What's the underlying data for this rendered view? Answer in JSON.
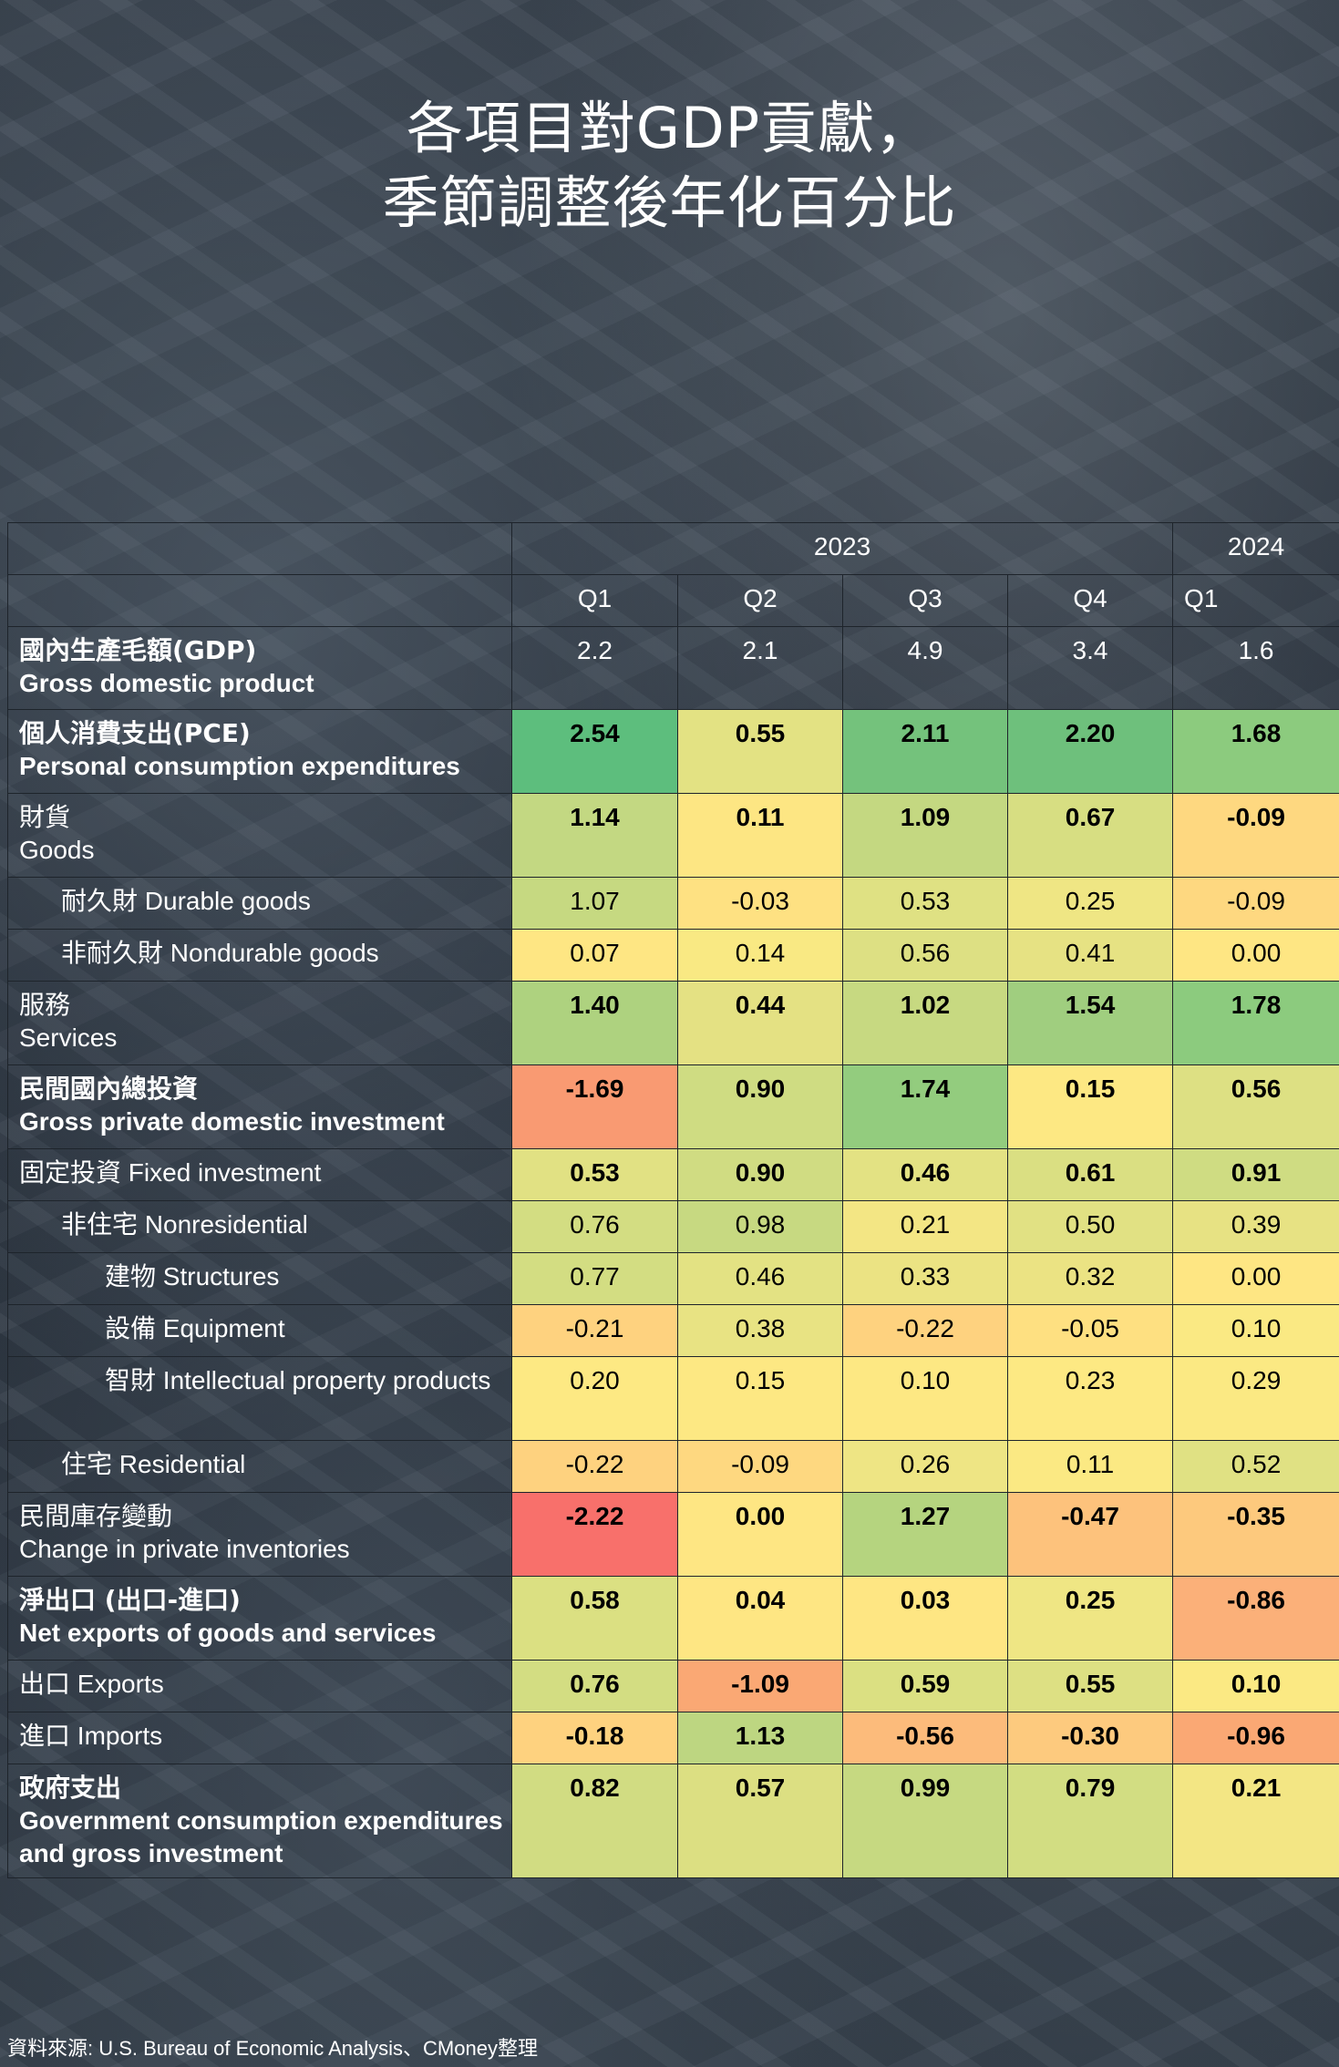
{
  "title": {
    "line1": "各項目對GDP貢獻，",
    "line2": "季節調整後年化百分比"
  },
  "header": {
    "year_2023": "2023",
    "year_2024": "2024",
    "quarters": [
      "Q1",
      "Q2",
      "Q3",
      "Q4",
      "Q1"
    ]
  },
  "chart_data": {
    "type": "table",
    "columns": [
      "2023 Q1",
      "2023 Q2",
      "2023 Q3",
      "2023 Q4",
      "2024 Q1"
    ],
    "rows": [
      {
        "zh": "國內生產毛額(GDP)",
        "en": "Gross domestic product",
        "values": [
          "2.2",
          "2.1",
          "4.9",
          "3.4",
          "1.6"
        ],
        "colors": [
          "",
          "",
          "",
          "",
          ""
        ]
      },
      {
        "zh": "個人消費支出(PCE)",
        "en": "Personal consumption expenditures",
        "values": [
          "2.54",
          "0.55",
          "2.11",
          "2.20",
          "1.68"
        ],
        "colors": [
          "#5dbe7d",
          "#e3e283",
          "#74c27c",
          "#6ec07c",
          "#8ccb7e"
        ]
      },
      {
        "zh": "財貨",
        "en": "Goods",
        "values": [
          "1.14",
          "0.11",
          "1.09",
          "0.67",
          "-0.09"
        ],
        "colors": [
          "#c3d882",
          "#fde683",
          "#c4d881",
          "#d7de82",
          "#fed880"
        ]
      },
      {
        "zh": "耐久財",
        "en": "Durable goods",
        "values": [
          "1.07",
          "-0.03",
          "0.53",
          "0.25",
          "-0.09"
        ],
        "colors": [
          "#c6d981",
          "#fee182",
          "#dfe183",
          "#efe684",
          "#fed880"
        ]
      },
      {
        "zh": "非耐久財",
        "en": "Nondurable goods",
        "values": [
          "0.07",
          "0.14",
          "0.56",
          "0.41",
          "0.00"
        ],
        "colors": [
          "#fee683",
          "#f9e983",
          "#dde083",
          "#e6e283",
          "#fee683"
        ]
      },
      {
        "zh": "服務",
        "en": "Services",
        "values": [
          "1.40",
          "0.44",
          "1.02",
          "1.54",
          "1.78"
        ],
        "colors": [
          "#aed27f",
          "#e4e183",
          "#c7d981",
          "#a0ce7f",
          "#8ccb7e"
        ]
      },
      {
        "zh": "民間國內總投資",
        "en": "Gross private domestic investment",
        "values": [
          "-1.69",
          "0.90",
          "1.74",
          "0.15",
          "0.56"
        ],
        "colors": [
          "#f99a72",
          "#cfdc82",
          "#93cc7e",
          "#fde883",
          "#dde083"
        ]
      },
      {
        "zh": "固定投資",
        "en": "Fixed investment",
        "values": [
          "0.53",
          "0.90",
          "0.46",
          "0.61",
          "0.91"
        ],
        "colors": [
          "#e1e183",
          "#d0dc82",
          "#e3e283",
          "#dadf82",
          "#cfdc82"
        ]
      },
      {
        "zh": "非住宅",
        "en": "Nonresidential",
        "values": [
          "0.76",
          "0.98",
          "0.21",
          "0.50",
          "0.39"
        ],
        "colors": [
          "#d3dd82",
          "#c7d981",
          "#f3e684",
          "#e1e183",
          "#e7e283"
        ]
      },
      {
        "zh": "建物",
        "en": "Structures",
        "values": [
          "0.77",
          "0.46",
          "0.33",
          "0.32",
          "0.00"
        ],
        "colors": [
          "#d3dd82",
          "#e3e283",
          "#ebe383",
          "#ebe383",
          "#fee683"
        ]
      },
      {
        "zh": "設備",
        "en": "Equipment",
        "values": [
          "-0.21",
          "0.38",
          "-0.22",
          "-0.05",
          "0.10"
        ],
        "colors": [
          "#fed27f",
          "#e8e383",
          "#fed27f",
          "#fee081",
          "#fae983"
        ]
      },
      {
        "zh": "智財",
        "en": "Intellectual property products",
        "values": [
          "0.20",
          "0.15",
          "0.10",
          "0.23",
          "0.29"
        ],
        "colors": [
          "#fde983",
          "#fde883",
          "#fde883",
          "#fde983",
          "#fbe983"
        ]
      },
      {
        "zh": "住宅",
        "en": "Residential",
        "values": [
          "-0.22",
          "-0.09",
          "0.26",
          "0.11",
          "0.52"
        ],
        "colors": [
          "#fed27f",
          "#fed880",
          "#eee584",
          "#fbe983",
          "#e0e183"
        ]
      },
      {
        "zh": "民間庫存變動",
        "en": "Change in private inventories",
        "values": [
          "-2.22",
          "0.00",
          "1.27",
          "-0.47",
          "-0.35"
        ],
        "colors": [
          "#f8706b",
          "#fee683",
          "#b5d47f",
          "#fdc27c",
          "#fdc97d"
        ]
      },
      {
        "zh": "淨出口 (出口-進口)",
        "en": "Net exports of goods and services",
        "values": [
          "0.58",
          "0.04",
          "0.03",
          "0.25",
          "-0.86"
        ],
        "colors": [
          "#dbe082",
          "#fee683",
          "#fee683",
          "#efe684",
          "#fbb079"
        ]
      },
      {
        "zh": "出口",
        "en": "Exports",
        "values": [
          "0.76",
          "-1.09",
          "0.59",
          "0.55",
          "0.10"
        ],
        "colors": [
          "#d3dd82",
          "#faa874",
          "#dbe082",
          "#dde083",
          "#fbe983"
        ]
      },
      {
        "zh": "進口",
        "en": "Imports",
        "values": [
          "-0.18",
          "1.13",
          "-0.56",
          "-0.30",
          "-0.96"
        ],
        "colors": [
          "#fed27f",
          "#bdd681",
          "#fcbb7b",
          "#fdca7e",
          "#faa874"
        ]
      },
      {
        "zh": "政府支出",
        "en": "Government consumption expenditures and gross investment",
        "values": [
          "0.82",
          "0.57",
          "0.99",
          "0.79",
          "0.21"
        ],
        "colors": [
          "#d1dc82",
          "#dcdf82",
          "#c6d981",
          "#d2dd82",
          "#f3e684"
        ]
      }
    ]
  },
  "source": "資料來源: U.S. Bureau of Economic Analysis、CMoney整理"
}
